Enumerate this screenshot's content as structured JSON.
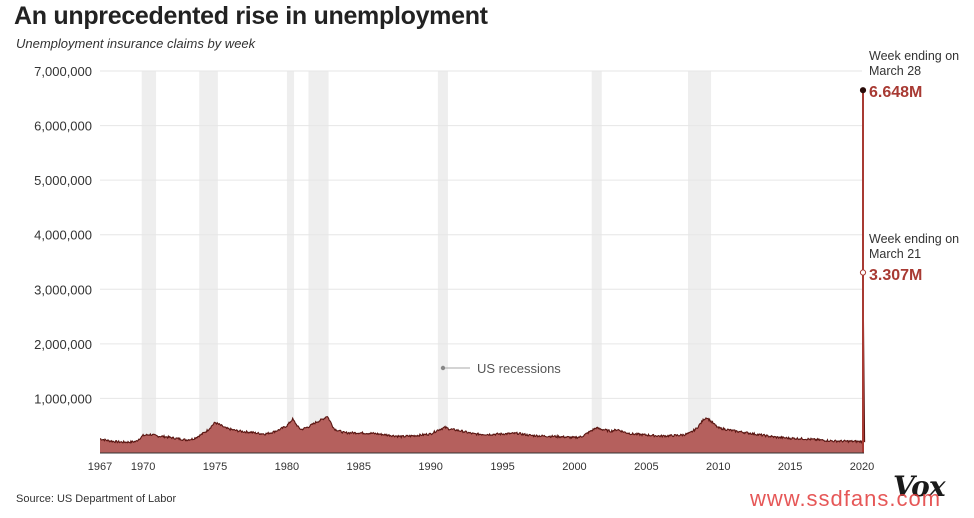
{
  "title": "An unprecedented rise in unemployment",
  "subtitle": "Unemployment insurance claims by week",
  "source": "Source: US Department of Labor",
  "brand": "Vox",
  "watermark": "www.ssdfans.com",
  "colors": {
    "area_fill": "#b5605d",
    "area_line": "#5a1612",
    "spike": "#a83a33",
    "recession_band": "#eeeeee",
    "gridline": "#e6e6e6"
  },
  "chart_data": {
    "type": "area",
    "xlim": [
      1967,
      2020
    ],
    "ylim": [
      0,
      7000000
    ],
    "y_ticks": [
      1000000,
      2000000,
      3000000,
      4000000,
      5000000,
      6000000,
      7000000
    ],
    "y_tick_labels": [
      "1,000,000",
      "2,000,000",
      "3,000,000",
      "4,000,000",
      "5,000,000",
      "6,000,000",
      "7,000,000"
    ],
    "x_ticks": [
      1967,
      1970,
      1975,
      1980,
      1985,
      1990,
      1995,
      2000,
      2005,
      2010,
      2015,
      2020
    ],
    "grid": true,
    "recessions": [
      [
        1969.9,
        1970.9
      ],
      [
        1973.9,
        1975.2
      ],
      [
        1980.0,
        1980.5
      ],
      [
        1981.5,
        1982.9
      ],
      [
        1990.5,
        1991.2
      ],
      [
        2001.2,
        2001.9
      ],
      [
        2007.9,
        2009.5
      ]
    ],
    "recession_label": "US recessions",
    "series": [
      {
        "x": [
          1967.0,
          1967.5,
          1968.0,
          1968.5,
          1969.0,
          1969.5,
          1970.0,
          1970.5,
          1971.0,
          1971.5,
          1972.0,
          1972.5,
          1973.0,
          1973.5,
          1974.0,
          1974.5,
          1975.0,
          1975.3,
          1975.8,
          1976.5,
          1977.0,
          1977.5,
          1978.0,
          1978.5,
          1979.0,
          1979.5,
          1980.0,
          1980.4,
          1980.8,
          1981.0,
          1981.5,
          1982.0,
          1982.5,
          1982.8,
          1983.3,
          1984.0,
          1985.0,
          1986.0,
          1987.0,
          1988.0,
          1989.0,
          1990.0,
          1990.5,
          1991.0,
          1991.3,
          1992.0,
          1993.0,
          1994.0,
          1995.0,
          1996.0,
          1997.0,
          1998.0,
          1999.0,
          2000.0,
          2000.5,
          2001.0,
          2001.5,
          2001.8,
          2002.5,
          2003.0,
          2003.5,
          2004.0,
          2005.0,
          2006.0,
          2007.0,
          2007.5,
          2008.0,
          2008.5,
          2009.0,
          2009.2,
          2009.5,
          2010.0,
          2011.0,
          2012.0,
          2013.0,
          2014.0,
          2015.0,
          2016.0,
          2017.0,
          2018.0,
          2019.0,
          2020.0,
          2020.18
        ],
        "y": [
          260000,
          230000,
          210000,
          200000,
          200000,
          210000,
          320000,
          340000,
          310000,
          300000,
          280000,
          260000,
          240000,
          260000,
          330000,
          420000,
          560000,
          520000,
          450000,
          410000,
          390000,
          380000,
          360000,
          350000,
          380000,
          430000,
          500000,
          620000,
          470000,
          430000,
          480000,
          560000,
          620000,
          680000,
          440000,
          370000,
          370000,
          360000,
          330000,
          300000,
          320000,
          350000,
          420000,
          470000,
          440000,
          410000,
          350000,
          340000,
          350000,
          360000,
          320000,
          310000,
          300000,
          280000,
          300000,
          380000,
          460000,
          440000,
          400000,
          430000,
          380000,
          350000,
          330000,
          310000,
          320000,
          330000,
          360000,
          450000,
          620000,
          650000,
          580000,
          460000,
          410000,
          370000,
          330000,
          290000,
          270000,
          260000,
          240000,
          220000,
          215000,
          210000,
          211000
        ]
      }
    ],
    "annotations": [
      {
        "label": "Week ending on",
        "date": "March 21",
        "value_label": "3.307M",
        "value": 3307000,
        "x": 2020.22
      },
      {
        "label": "Week ending on",
        "date": "March 28",
        "value_label": "6.648M",
        "value": 6648000,
        "x": 2020.24
      }
    ]
  }
}
